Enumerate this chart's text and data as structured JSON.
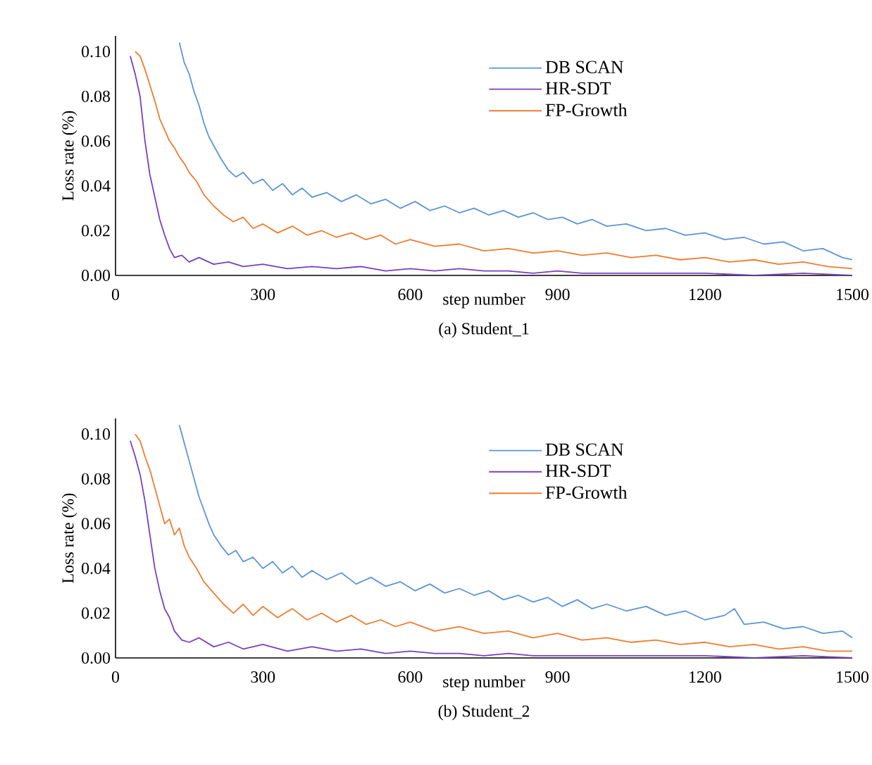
{
  "chart_data": [
    {
      "type": "line",
      "title": "(a) Student_1",
      "xlabel": "step number",
      "ylabel": "Loss rate (%)",
      "xlim": [
        0,
        1500
      ],
      "ylim": [
        0,
        0.107
      ],
      "xticks": [
        0,
        300,
        600,
        900,
        1200,
        1500
      ],
      "yticks": [
        {
          "value": 0,
          "label": "0.00"
        },
        {
          "value": 0.02,
          "label": "0.02"
        },
        {
          "value": 0.04,
          "label": "0.04"
        },
        {
          "value": 0.06,
          "label": "0.06"
        },
        {
          "value": 0.08,
          "label": "0.08"
        },
        {
          "value": 0.1,
          "label": "0.10"
        }
      ],
      "legend": "top right",
      "grid": false,
      "marker": "none",
      "line_style": "solid",
      "series": [
        {
          "name": "DB SCAN",
          "color": "#5b95d8",
          "x": [
            130,
            140,
            150,
            160,
            170,
            180,
            190,
            200,
            215,
            230,
            245,
            260,
            280,
            300,
            320,
            340,
            360,
            380,
            400,
            430,
            460,
            490,
            520,
            550,
            580,
            610,
            640,
            670,
            700,
            730,
            760,
            790,
            820,
            850,
            880,
            910,
            940,
            970,
            1000,
            1040,
            1080,
            1120,
            1160,
            1200,
            1240,
            1280,
            1320,
            1360,
            1400,
            1440,
            1480,
            1500
          ],
          "values": [
            0.104,
            0.095,
            0.09,
            0.082,
            0.076,
            0.068,
            0.062,
            0.058,
            0.052,
            0.047,
            0.044,
            0.046,
            0.041,
            0.043,
            0.038,
            0.041,
            0.036,
            0.039,
            0.035,
            0.037,
            0.033,
            0.036,
            0.032,
            0.034,
            0.03,
            0.033,
            0.029,
            0.031,
            0.028,
            0.03,
            0.027,
            0.029,
            0.026,
            0.028,
            0.025,
            0.026,
            0.023,
            0.025,
            0.022,
            0.023,
            0.02,
            0.021,
            0.018,
            0.019,
            0.016,
            0.017,
            0.014,
            0.015,
            0.011,
            0.012,
            0.008,
            0.007
          ]
        },
        {
          "name": "HR-SDT",
          "color": "#7b3fbf",
          "x": [
            30,
            40,
            50,
            60,
            70,
            80,
            90,
            100,
            110,
            120,
            135,
            150,
            170,
            200,
            230,
            260,
            300,
            350,
            400,
            450,
            500,
            550,
            600,
            650,
            700,
            750,
            800,
            850,
            900,
            950,
            1000,
            1100,
            1200,
            1300,
            1400,
            1500
          ],
          "values": [
            0.098,
            0.09,
            0.08,
            0.06,
            0.045,
            0.035,
            0.025,
            0.018,
            0.012,
            0.008,
            0.009,
            0.006,
            0.008,
            0.005,
            0.006,
            0.004,
            0.005,
            0.003,
            0.004,
            0.003,
            0.004,
            0.002,
            0.003,
            0.002,
            0.003,
            0.002,
            0.002,
            0.001,
            0.002,
            0.001,
            0.001,
            0.001,
            0.001,
            0,
            0.001,
            0
          ]
        },
        {
          "name": "FP-Growth",
          "color": "#ed7d31",
          "x": [
            40,
            50,
            60,
            70,
            80,
            90,
            100,
            110,
            120,
            130,
            140,
            150,
            165,
            180,
            200,
            220,
            240,
            260,
            280,
            300,
            330,
            360,
            390,
            420,
            450,
            480,
            510,
            540,
            570,
            600,
            650,
            700,
            750,
            800,
            850,
            900,
            950,
            1000,
            1050,
            1100,
            1150,
            1200,
            1250,
            1300,
            1350,
            1400,
            1450,
            1500
          ],
          "values": [
            0.1,
            0.098,
            0.092,
            0.085,
            0.078,
            0.07,
            0.065,
            0.06,
            0.057,
            0.053,
            0.05,
            0.046,
            0.042,
            0.036,
            0.031,
            0.027,
            0.024,
            0.026,
            0.021,
            0.023,
            0.019,
            0.022,
            0.018,
            0.02,
            0.017,
            0.019,
            0.016,
            0.018,
            0.014,
            0.016,
            0.013,
            0.014,
            0.011,
            0.012,
            0.01,
            0.011,
            0.009,
            0.01,
            0.008,
            0.009,
            0.007,
            0.008,
            0.006,
            0.007,
            0.005,
            0.006,
            0.004,
            0.003
          ]
        }
      ]
    },
    {
      "type": "line",
      "title": "(b) Student_2",
      "xlabel": "step number",
      "ylabel": "Loss rate (%)",
      "xlim": [
        0,
        1500
      ],
      "ylim": [
        0,
        0.107
      ],
      "xticks": [
        0,
        300,
        600,
        900,
        1200,
        1500
      ],
      "yticks": [
        {
          "value": 0,
          "label": "0.00"
        },
        {
          "value": 0.02,
          "label": "0.02"
        },
        {
          "value": 0.04,
          "label": "0.04"
        },
        {
          "value": 0.06,
          "label": "0.06"
        },
        {
          "value": 0.08,
          "label": "0.08"
        },
        {
          "value": 0.1,
          "label": "0.10"
        }
      ],
      "legend": "top right",
      "grid": false,
      "marker": "none",
      "line_style": "solid",
      "series": [
        {
          "name": "DB SCAN",
          "color": "#5b95d8",
          "x": [
            130,
            140,
            150,
            160,
            170,
            180,
            190,
            200,
            215,
            230,
            245,
            260,
            280,
            300,
            320,
            340,
            360,
            380,
            400,
            430,
            460,
            490,
            520,
            550,
            580,
            610,
            640,
            670,
            700,
            730,
            760,
            790,
            820,
            850,
            880,
            910,
            940,
            970,
            1000,
            1040,
            1080,
            1120,
            1160,
            1200,
            1240,
            1260,
            1280,
            1320,
            1360,
            1400,
            1440,
            1480,
            1500
          ],
          "values": [
            0.104,
            0.096,
            0.088,
            0.08,
            0.072,
            0.066,
            0.06,
            0.055,
            0.05,
            0.046,
            0.048,
            0.043,
            0.045,
            0.04,
            0.043,
            0.038,
            0.041,
            0.036,
            0.039,
            0.035,
            0.038,
            0.033,
            0.036,
            0.032,
            0.034,
            0.03,
            0.033,
            0.029,
            0.031,
            0.028,
            0.03,
            0.026,
            0.028,
            0.025,
            0.027,
            0.023,
            0.026,
            0.022,
            0.024,
            0.021,
            0.023,
            0.019,
            0.021,
            0.017,
            0.019,
            0.022,
            0.015,
            0.016,
            0.013,
            0.014,
            0.011,
            0.012,
            0.009
          ]
        },
        {
          "name": "HR-SDT",
          "color": "#7b3fbf",
          "x": [
            30,
            40,
            50,
            60,
            70,
            80,
            90,
            100,
            110,
            120,
            135,
            150,
            170,
            200,
            230,
            260,
            300,
            350,
            400,
            450,
            500,
            550,
            600,
            650,
            700,
            750,
            800,
            850,
            900,
            950,
            1000,
            1100,
            1200,
            1300,
            1400,
            1500
          ],
          "values": [
            0.097,
            0.09,
            0.082,
            0.07,
            0.055,
            0.04,
            0.03,
            0.022,
            0.018,
            0.012,
            0.008,
            0.007,
            0.009,
            0.005,
            0.007,
            0.004,
            0.006,
            0.003,
            0.005,
            0.003,
            0.004,
            0.002,
            0.003,
            0.002,
            0.002,
            0.001,
            0.002,
            0.001,
            0.001,
            0.001,
            0.001,
            0.001,
            0.001,
            0,
            0.001,
            0
          ]
        },
        {
          "name": "FP-Growth",
          "color": "#ed7d31",
          "x": [
            40,
            50,
            60,
            70,
            80,
            90,
            100,
            110,
            120,
            130,
            140,
            150,
            165,
            180,
            200,
            220,
            240,
            260,
            280,
            300,
            330,
            360,
            390,
            420,
            450,
            480,
            510,
            540,
            570,
            600,
            650,
            700,
            750,
            800,
            850,
            900,
            950,
            1000,
            1050,
            1100,
            1150,
            1200,
            1250,
            1300,
            1350,
            1400,
            1450,
            1500
          ],
          "values": [
            0.1,
            0.097,
            0.09,
            0.084,
            0.076,
            0.068,
            0.06,
            0.062,
            0.055,
            0.058,
            0.05,
            0.045,
            0.04,
            0.034,
            0.029,
            0.024,
            0.02,
            0.024,
            0.019,
            0.023,
            0.018,
            0.022,
            0.017,
            0.02,
            0.016,
            0.019,
            0.015,
            0.017,
            0.014,
            0.016,
            0.012,
            0.014,
            0.011,
            0.012,
            0.009,
            0.011,
            0.008,
            0.009,
            0.007,
            0.008,
            0.006,
            0.007,
            0.005,
            0.006,
            0.004,
            0.005,
            0.003,
            0.003
          ]
        }
      ]
    }
  ]
}
